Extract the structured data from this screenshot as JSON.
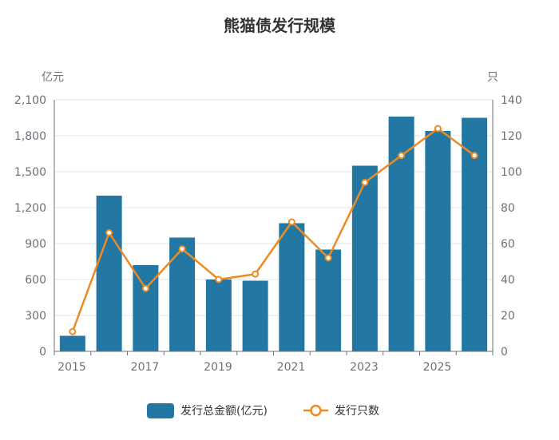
{
  "chart_data": {
    "type": "bar",
    "title": "熊猫债发行规模",
    "categories": [
      "2015",
      "2016",
      "2017",
      "2018",
      "2019",
      "2020",
      "2021",
      "2022",
      "2023",
      "2024",
      "2025",
      "2026"
    ],
    "x_tick_labels": [
      "2015",
      "2017",
      "2019",
      "2021",
      "2023",
      "2025"
    ],
    "left_axis": {
      "unit": "亿元",
      "ylim": [
        0,
        2100
      ],
      "ticks": [
        "0",
        "300",
        "600",
        "900",
        "1,200",
        "1,500",
        "1,800",
        "2,100"
      ]
    },
    "right_axis": {
      "unit": "只",
      "ylim": [
        0,
        140
      ],
      "ticks": [
        "0",
        "20",
        "40",
        "60",
        "80",
        "100",
        "120",
        "140"
      ]
    },
    "series": [
      {
        "name": "发行总金额(亿元)",
        "type": "bar",
        "axis": "left",
        "color": "#2378a3",
        "values": [
          130,
          1300,
          720,
          950,
          600,
          590,
          1070,
          850,
          1550,
          1960,
          1840,
          1950
        ]
      },
      {
        "name": "发行只数",
        "type": "line",
        "axis": "right",
        "color": "#ee8a22",
        "values": [
          11,
          66,
          35,
          57,
          40,
          43,
          72,
          52,
          94,
          109,
          124,
          109
        ]
      }
    ],
    "grid": true,
    "legend": "bottom"
  }
}
